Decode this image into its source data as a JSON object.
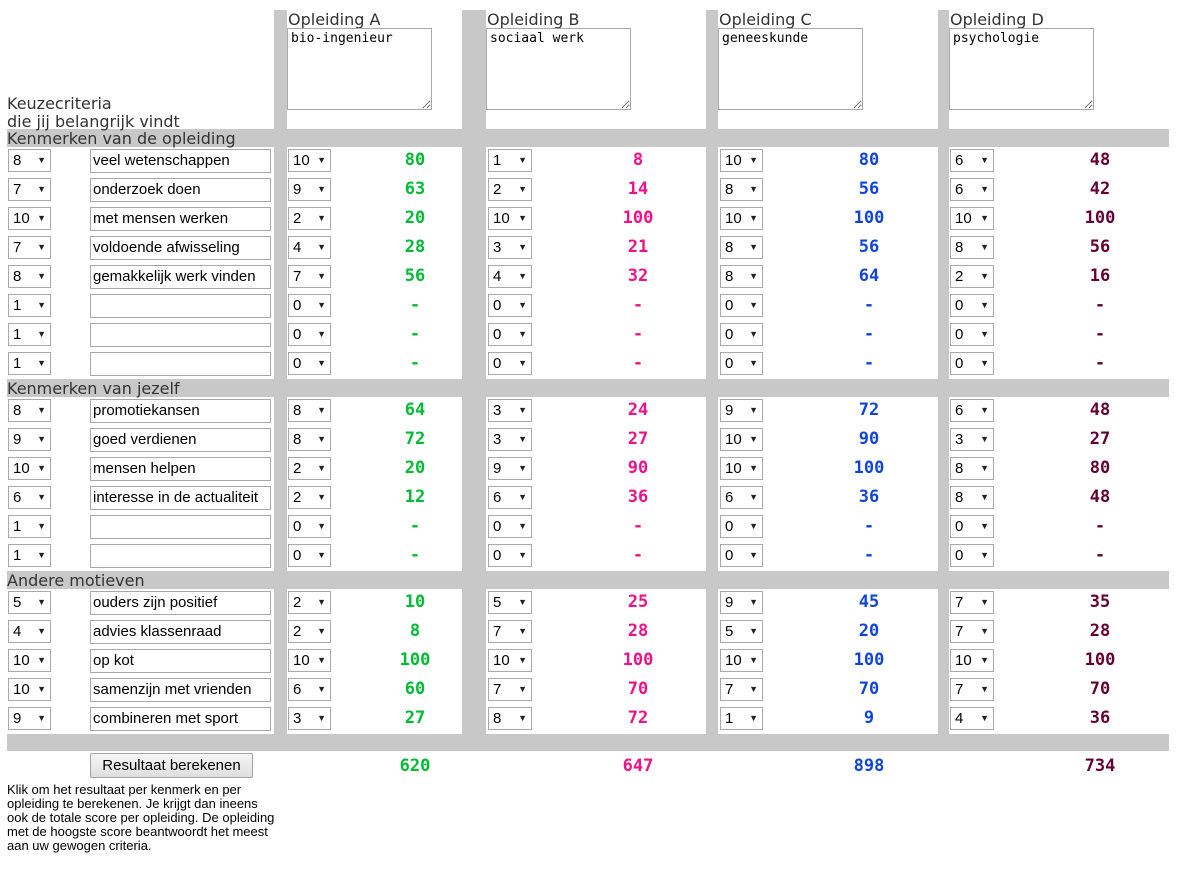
{
  "header": {
    "title": "Keuzecriteria",
    "subtitle": "die jij belangrijk vindt",
    "opleidingen": [
      {
        "label": "Opleiding A",
        "name": "bio-ingenieur"
      },
      {
        "label": "Opleiding B",
        "name": "sociaal werk"
      },
      {
        "label": "Opleiding C",
        "name": "geneeskunde"
      },
      {
        "label": "Opleiding D",
        "name": "psychologie"
      }
    ]
  },
  "colors": {
    "a": "#00bb33",
    "b": "#ee1188",
    "c": "#1144dd",
    "d": "#660033",
    "bar": "#c8c8c8"
  },
  "sections": [
    {
      "title": "Kenmerken van de opleiding",
      "rows": [
        {
          "w": "8",
          "crit": "veel wetenschappen",
          "a": "10",
          "as": "80",
          "b": "1",
          "bs": "8",
          "c": "10",
          "cs": "80",
          "d": "6",
          "ds": "48"
        },
        {
          "w": "7",
          "crit": "onderzoek doen",
          "a": "9",
          "as": "63",
          "b": "2",
          "bs": "14",
          "c": "8",
          "cs": "56",
          "d": "6",
          "ds": "42"
        },
        {
          "w": "10",
          "crit": "met mensen werken",
          "a": "2",
          "as": "20",
          "b": "10",
          "bs": "100",
          "c": "10",
          "cs": "100",
          "d": "10",
          "ds": "100"
        },
        {
          "w": "7",
          "crit": "voldoende afwisseling",
          "a": "4",
          "as": "28",
          "b": "3",
          "bs": "21",
          "c": "8",
          "cs": "56",
          "d": "8",
          "ds": "56"
        },
        {
          "w": "8",
          "crit": "gemakkelijk werk vinden",
          "a": "7",
          "as": "56",
          "b": "4",
          "bs": "32",
          "c": "8",
          "cs": "64",
          "d": "2",
          "ds": "16"
        },
        {
          "w": "1",
          "crit": "",
          "a": "0",
          "as": "-",
          "b": "0",
          "bs": "-",
          "c": "0",
          "cs": "-",
          "d": "0",
          "ds": "-"
        },
        {
          "w": "1",
          "crit": "",
          "a": "0",
          "as": "-",
          "b": "0",
          "bs": "-",
          "c": "0",
          "cs": "-",
          "d": "0",
          "ds": "-"
        },
        {
          "w": "1",
          "crit": "",
          "a": "0",
          "as": "-",
          "b": "0",
          "bs": "-",
          "c": "0",
          "cs": "-",
          "d": "0",
          "ds": "-"
        }
      ]
    },
    {
      "title": "Kenmerken van jezelf",
      "rows": [
        {
          "w": "8",
          "crit": "promotiekansen",
          "a": "8",
          "as": "64",
          "b": "3",
          "bs": "24",
          "c": "9",
          "cs": "72",
          "d": "6",
          "ds": "48"
        },
        {
          "w": "9",
          "crit": "goed verdienen",
          "a": "8",
          "as": "72",
          "b": "3",
          "bs": "27",
          "c": "10",
          "cs": "90",
          "d": "3",
          "ds": "27"
        },
        {
          "w": "10",
          "crit": "mensen helpen",
          "a": "2",
          "as": "20",
          "b": "9",
          "bs": "90",
          "c": "10",
          "cs": "100",
          "d": "8",
          "ds": "80"
        },
        {
          "w": "6",
          "crit": "interesse in de actualiteit",
          "a": "2",
          "as": "12",
          "b": "6",
          "bs": "36",
          "c": "6",
          "cs": "36",
          "d": "8",
          "ds": "48"
        },
        {
          "w": "1",
          "crit": "",
          "a": "0",
          "as": "-",
          "b": "0",
          "bs": "-",
          "c": "0",
          "cs": "-",
          "d": "0",
          "ds": "-"
        },
        {
          "w": "1",
          "crit": "",
          "a": "0",
          "as": "-",
          "b": "0",
          "bs": "-",
          "c": "0",
          "cs": "-",
          "d": "0",
          "ds": "-"
        }
      ]
    },
    {
      "title": "Andere motieven",
      "rows": [
        {
          "w": "5",
          "crit": "ouders zijn positief",
          "a": "2",
          "as": "10",
          "b": "5",
          "bs": "25",
          "c": "9",
          "cs": "45",
          "d": "7",
          "ds": "35"
        },
        {
          "w": "4",
          "crit": "advies klassenraad",
          "a": "2",
          "as": "8",
          "b": "7",
          "bs": "28",
          "c": "5",
          "cs": "20",
          "d": "7",
          "ds": "28"
        },
        {
          "w": "10",
          "crit": "op kot",
          "a": "10",
          "as": "100",
          "b": "10",
          "bs": "100",
          "c": "10",
          "cs": "100",
          "d": "10",
          "ds": "100"
        },
        {
          "w": "10",
          "crit": "samenzijn met vrienden",
          "a": "6",
          "as": "60",
          "b": "7",
          "bs": "70",
          "c": "7",
          "cs": "70",
          "d": "7",
          "ds": "70"
        },
        {
          "w": "9",
          "crit": "combineren met sport",
          "a": "3",
          "as": "27",
          "b": "8",
          "bs": "72",
          "c": "1",
          "cs": "9",
          "d": "4",
          "ds": "36"
        }
      ]
    }
  ],
  "totals": {
    "a": "620",
    "b": "647",
    "c": "898",
    "d": "734"
  },
  "button_label": "Resultaat berekenen",
  "note": "Klik om het resultaat per kenmerk en per opleiding te berekenen. Je krijgt dan ineens ook de totale score per opleiding. De opleiding met de hoogste score beantwoordt het meest aan uw gewogen criteria."
}
